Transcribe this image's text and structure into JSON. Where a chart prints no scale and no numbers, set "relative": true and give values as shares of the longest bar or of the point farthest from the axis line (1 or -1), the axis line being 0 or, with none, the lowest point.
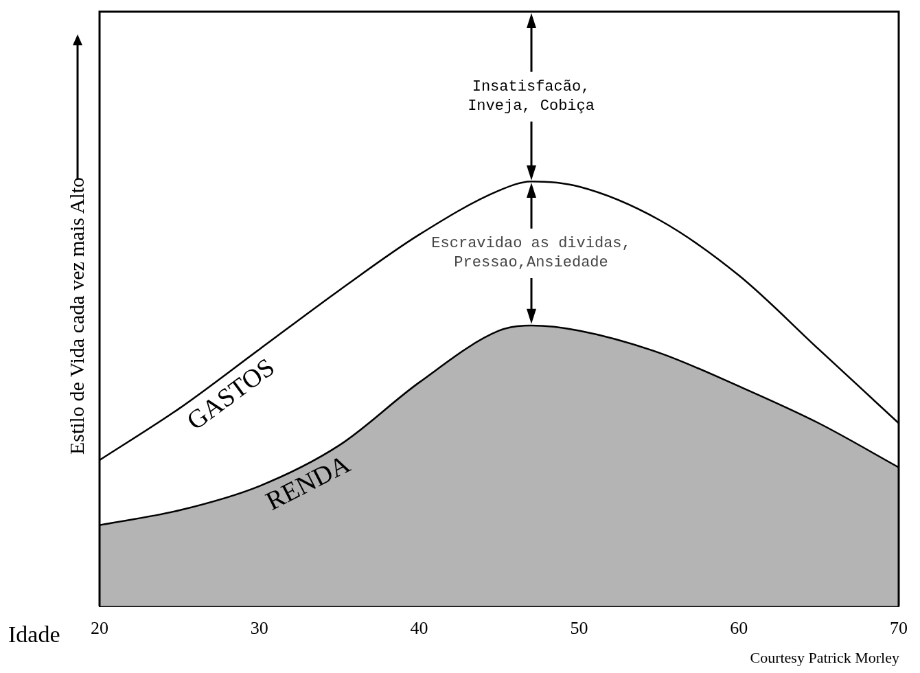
{
  "chart_data": {
    "type": "line",
    "relative": true,
    "x": [
      20,
      25,
      30,
      35,
      40,
      45,
      47,
      50,
      55,
      60,
      65,
      70
    ],
    "series": [
      {
        "name": "GASTOS",
        "type": "line",
        "color": "#000000",
        "values": [
          0.344,
          0.466,
          0.605,
          0.744,
          0.875,
          0.979,
          1,
          0.988,
          0.91,
          0.779,
          0.605,
          0.431
        ]
      },
      {
        "name": "RENDA",
        "type": "area",
        "color": "#b4b4b4",
        "values": [
          0.191,
          0.226,
          0.283,
          0.379,
          0.527,
          0.649,
          0.661,
          0.649,
          0.597,
          0.518,
          0.431,
          0.327
        ]
      }
    ],
    "xlim": [
      20,
      70
    ],
    "xticks": [
      20,
      30,
      40,
      50,
      60,
      70
    ],
    "xlabel": "Idade",
    "ylabel": "Estilo de Vida cada vez mais Alto",
    "annotations": [
      "Insatisfacão,\nInveja, Cobiça",
      "Escravidao as dividas,\nPressao,Ansiedade",
      "Courtesy Patrick Morley"
    ],
    "tick_labels": "x",
    "grid": false,
    "legend": false,
    "marker": "none",
    "line_style": "solid"
  }
}
